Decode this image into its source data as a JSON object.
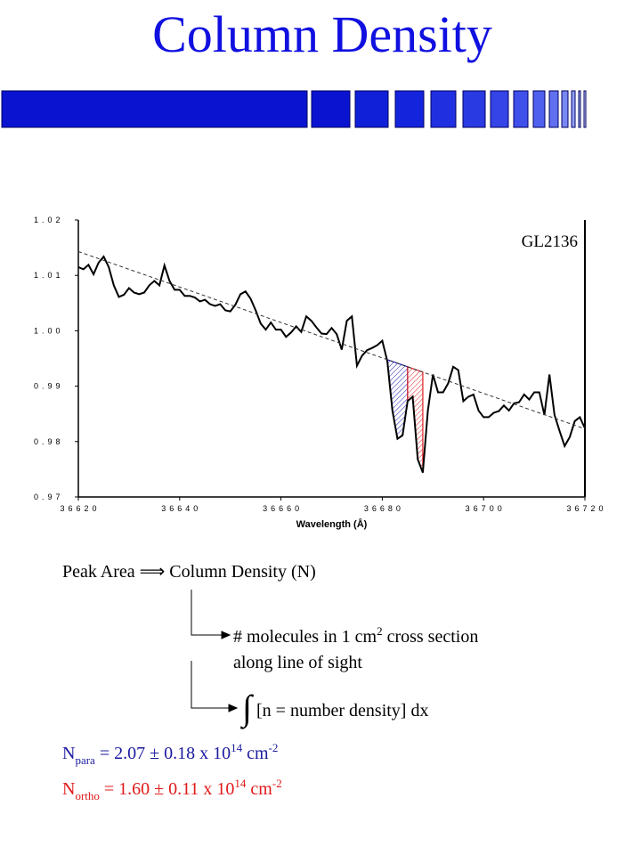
{
  "title": "Column Density",
  "chart_data": {
    "type": "line",
    "annotation": "GL2136",
    "xlabel": "Wavelength (Å)",
    "xlim": [
      36620,
      36720
    ],
    "ylim": [
      0.97,
      1.02
    ],
    "xticks": [
      36620,
      36640,
      36660,
      36680,
      36700,
      36720
    ],
    "yticks": [
      0.97,
      0.98,
      0.99,
      {
        "value": 1,
        "label": "1.00"
      },
      1.01,
      1.02
    ],
    "series": [
      {
        "color": "#000000",
        "x": [
          36620,
          36621,
          36622,
          36623,
          36624,
          36625,
          36626,
          36627,
          36628,
          36629,
          36630,
          36631,
          36632,
          36633,
          36634,
          36635,
          36636,
          36637,
          36638,
          36639,
          36640,
          36641,
          36642,
          36643,
          36644,
          36645,
          36646,
          36647,
          36648,
          36649,
          36650,
          36651,
          36652,
          36653,
          36654,
          36655,
          36656,
          36657,
          36658,
          36659,
          36660,
          36661,
          36662,
          36663,
          36664,
          36665,
          36666,
          36667,
          36668,
          36669,
          36670,
          36671,
          36672,
          36673,
          36674,
          36675,
          36676,
          36677,
          36678,
          36679,
          36680,
          36681,
          36682,
          36683,
          36684,
          36685,
          36686,
          36687,
          36688,
          36689,
          36690,
          36691,
          36692,
          36693,
          36694,
          36695,
          36696,
          36697,
          36698,
          36699,
          36700,
          36701,
          36702,
          36703,
          36704,
          36705,
          36706,
          36707,
          36708,
          36709,
          36710,
          36711,
          36712,
          36713,
          36714,
          36715,
          36716,
          36717,
          36718,
          36719,
          36720
        ],
        "values": [
          1.0115,
          1.0111,
          1.0119,
          1.0102,
          1.0123,
          1.0134,
          1.0115,
          1.0082,
          1.0061,
          1.0065,
          1.0077,
          1.0069,
          1.0066,
          1.0069,
          1.0082,
          1.009,
          1.0082,
          1.0118,
          1.009,
          1.0074,
          1.0074,
          1.0063,
          1.0063,
          1.006,
          1.0053,
          1.0056,
          1.0048,
          1.0045,
          1.0048,
          1.0037,
          1.0035,
          1.0047,
          1.0066,
          1.0071,
          1.0058,
          1.0037,
          1.0013,
          1.0002,
          1.0015,
          1.0002,
          1.0002,
          0.9989,
          0.9997,
          1.0008,
          0.9998,
          1.0026,
          1.0018,
          1.0006,
          0.9995,
          0.9994,
          1.0005,
          0.9994,
          0.9966,
          1.0018,
          1.0026,
          0.9937,
          0.9955,
          0.9965,
          0.9969,
          0.9974,
          0.9982,
          0.9945,
          0.9856,
          0.9805,
          0.9811,
          0.9873,
          0.9881,
          0.9768,
          0.9744,
          0.9856,
          0.9921,
          0.9889,
          0.9889,
          0.9905,
          0.9935,
          0.9929,
          0.9873,
          0.9881,
          0.9885,
          0.9856,
          0.9844,
          0.9844,
          0.9852,
          0.9855,
          0.9865,
          0.9856,
          0.9869,
          0.9871,
          0.9885,
          0.9876,
          0.9889,
          0.9889,
          0.9848,
          0.9921,
          0.9848,
          0.9819,
          0.9792,
          0.9808,
          0.9837,
          0.9844,
          0.9824
        ]
      },
      {
        "color": "#333333",
        "dashed": true,
        "x": [
          36620,
          36720
        ],
        "values": [
          1.0143,
          0.9823
        ]
      }
    ],
    "fills": [
      {
        "color": "#1a1ab0",
        "x": [
          36681,
          36685
        ]
      },
      {
        "color": "#e02020",
        "x": [
          36685,
          36688
        ]
      }
    ]
  },
  "notes": {
    "peak_area": "Peak Area ⟹ Column Density (N)",
    "molecules": [
      "# molecules in 1 cm",
      "2",
      " cross section"
    ],
    "sight": "along line of sight",
    "integral": [
      "∫",
      "[n = number density] dx"
    ],
    "para": {
      "color": "#1a1aa0",
      "parts": [
        "N",
        "para",
        " =  2.07 ± 0.18 x 10",
        "14",
        " cm",
        "-2"
      ]
    },
    "ortho": {
      "color": "#e01818",
      "parts": [
        "N",
        "ortho",
        " = 1.60 ± 0.11 x 10",
        "14",
        " cm",
        "-2"
      ]
    }
  }
}
